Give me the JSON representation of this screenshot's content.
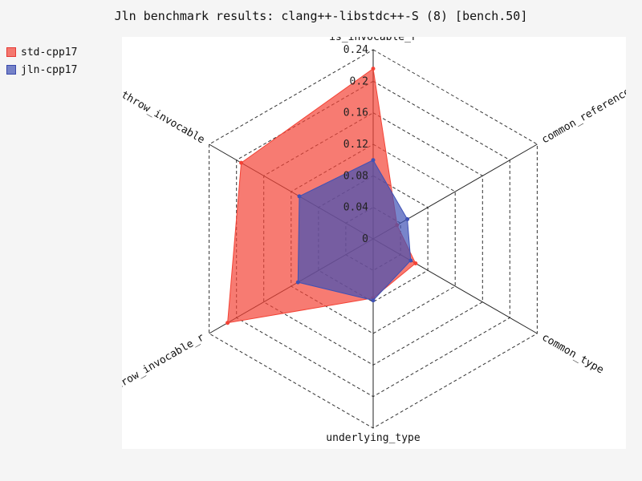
{
  "chart_data": {
    "type": "radar",
    "title": "Jln benchmark results: clang++-libstdc++-S (8) [bench.50]",
    "axes": [
      "is_invocable_r",
      "common_reference",
      "common_type",
      "underlying_type",
      "is_nothrow_invocable_r",
      "is_nothrow_invocable"
    ],
    "rlim": [
      0,
      0.24
    ],
    "r_ticks": [
      0,
      0.04,
      0.08,
      0.12,
      0.16,
      0.2,
      0.24
    ],
    "r_tick_labels": [
      "0",
      "0.04",
      "0.08",
      "0.12",
      "0.16",
      "0.2",
      "0.24"
    ],
    "grid": true,
    "legend_position": "top-left",
    "series": [
      {
        "name": "std-cpp17",
        "values": [
          0.216,
          0.035,
          0.062,
          0.075,
          0.213,
          0.193
        ],
        "color": "#f44336"
      },
      {
        "name": "jln-cpp17",
        "values": [
          0.1,
          0.05,
          0.055,
          0.078,
          0.11,
          0.108
        ],
        "color": "#3f51b5"
      }
    ]
  }
}
